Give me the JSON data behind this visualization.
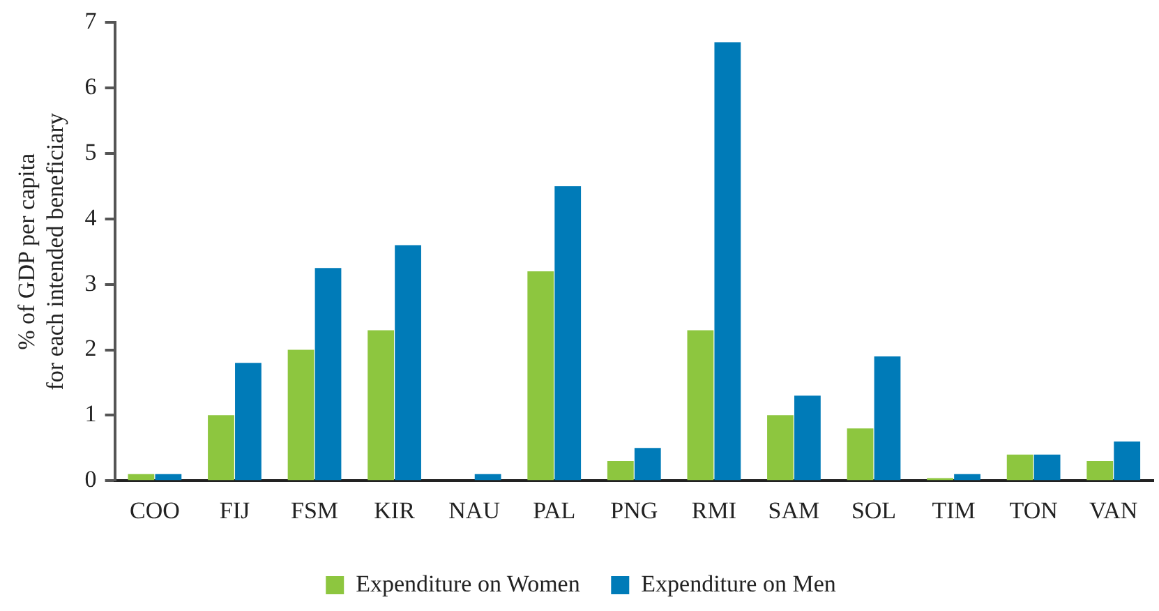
{
  "chart_data": {
    "type": "bar",
    "ylabel": "% of GDP per capita\nfor each intended beneficiary",
    "categories": [
      "COO",
      "FIJ",
      "FSM",
      "KIR",
      "NAU",
      "PAL",
      "PNG",
      "RMI",
      "SAM",
      "SOL",
      "TIM",
      "TON",
      "VAN"
    ],
    "series": [
      {
        "name": "Expenditure on Women",
        "color": "#8dc63f",
        "values": [
          0.1,
          1.0,
          2.0,
          2.3,
          0,
          3.2,
          0.3,
          2.3,
          1.0,
          0.8,
          0.04,
          0.4,
          0.3
        ]
      },
      {
        "name": "Expenditure on Men",
        "color": "#007bb8",
        "values": [
          0.1,
          1.8,
          3.25,
          3.6,
          0.1,
          4.5,
          0.5,
          6.7,
          1.3,
          1.9,
          0.1,
          0.4,
          0.6
        ]
      }
    ],
    "ylim": [
      0,
      7
    ],
    "yticks": [
      0,
      1,
      2,
      3,
      4,
      5,
      6,
      7
    ],
    "grid": false,
    "legend": "bottom"
  }
}
